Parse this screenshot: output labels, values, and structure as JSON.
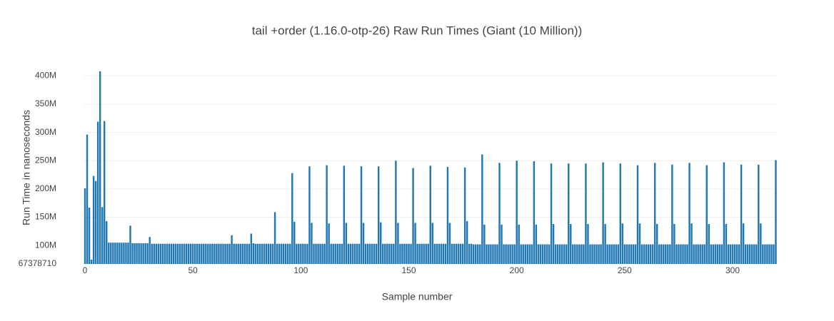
{
  "chart_data": {
    "type": "bar",
    "title": "tail +order (1.16.0-otp-26) Raw Run Times (Giant (10 Million))",
    "x_label": "Sample number",
    "y_label": "Run Time in nanoseconds",
    "color": "#1f77b4",
    "grid": true,
    "xlim": [
      -0.5,
      320.5
    ],
    "xticks": [
      0,
      50,
      100,
      150,
      200,
      250,
      300
    ],
    "ylim": [
      67378710,
      408000000.0
    ],
    "yticks": [
      {
        "value": 67378710,
        "label": "67378710"
      },
      {
        "value": 100000000,
        "label": "100M"
      },
      {
        "value": 150000000,
        "label": "150M"
      },
      {
        "value": 200000000,
        "label": "200M"
      },
      {
        "value": 250000000,
        "label": "250M"
      },
      {
        "value": 300000000,
        "label": "300M"
      },
      {
        "value": 350000000,
        "label": "350M"
      },
      {
        "value": 400000000,
        "label": "400M"
      }
    ],
    "x": [
      0,
      1,
      2,
      3,
      4,
      5,
      6,
      7,
      8,
      9,
      10,
      11,
      12,
      13,
      14,
      15,
      16,
      17,
      18,
      19,
      20,
      21,
      22,
      23,
      24,
      25,
      26,
      27,
      28,
      29,
      30,
      31,
      32,
      33,
      34,
      35,
      36,
      37,
      38,
      39,
      40,
      41,
      42,
      43,
      44,
      45,
      46,
      47,
      48,
      49,
      50,
      51,
      52,
      53,
      54,
      55,
      56,
      57,
      58,
      59,
      60,
      61,
      62,
      63,
      64,
      65,
      66,
      67,
      68,
      69,
      70,
      71,
      72,
      73,
      74,
      75,
      76,
      77,
      78,
      79,
      80,
      81,
      82,
      83,
      84,
      85,
      86,
      87,
      88,
      89,
      90,
      91,
      92,
      93,
      94,
      95,
      96,
      97,
      98,
      99,
      100,
      101,
      102,
      103,
      104,
      105,
      106,
      107,
      108,
      109,
      110,
      111,
      112,
      113,
      114,
      115,
      116,
      117,
      118,
      119,
      120,
      121,
      122,
      123,
      124,
      125,
      126,
      127,
      128,
      129,
      130,
      131,
      132,
      133,
      134,
      135,
      136,
      137,
      138,
      139,
      140,
      141,
      142,
      143,
      144,
      145,
      146,
      147,
      148,
      149,
      150,
      151,
      152,
      153,
      154,
      155,
      156,
      157,
      158,
      159,
      160,
      161,
      162,
      163,
      164,
      165,
      166,
      167,
      168,
      169,
      170,
      171,
      172,
      173,
      174,
      175,
      176,
      177,
      178,
      179,
      180,
      181,
      182,
      183,
      184,
      185,
      186,
      187,
      188,
      189,
      190,
      191,
      192,
      193,
      194,
      195,
      196,
      197,
      198,
      199,
      200,
      201,
      202,
      203,
      204,
      205,
      206,
      207,
      208,
      209,
      210,
      211,
      212,
      213,
      214,
      215,
      216,
      217,
      218,
      219,
      220,
      221,
      222,
      223,
      224,
      225,
      226,
      227,
      228,
      229,
      230,
      231,
      232,
      233,
      234,
      235,
      236,
      237,
      238,
      239,
      240,
      241,
      242,
      243,
      244,
      245,
      246,
      247,
      248,
      249,
      250,
      251,
      252,
      253,
      254,
      255,
      256,
      257,
      258,
      259,
      260,
      261,
      262,
      263,
      264,
      265,
      266,
      267,
      268,
      269,
      270,
      271,
      272,
      273,
      274,
      275,
      276,
      277,
      278,
      279,
      280,
      281,
      282,
      283,
      284,
      285,
      286,
      287,
      288,
      289,
      290,
      291,
      292,
      293,
      294,
      295,
      296,
      297,
      298,
      299,
      300,
      301,
      302,
      303,
      304,
      305,
      306,
      307,
      308,
      309,
      310,
      311,
      312,
      313,
      314,
      315,
      316,
      317,
      318,
      319,
      320
    ],
    "values": [
      201000000.0,
      296000000.0,
      167000000.0,
      75000000.0,
      223000000.0,
      214000000.0,
      319000000.0,
      408000000.0,
      168000000.0,
      320000000.0,
      143000000.0,
      105000000.0,
      105000000.0,
      105000000.0,
      105000000.0,
      105000000.0,
      105000000.0,
      105000000.0,
      105000000.0,
      105000000.0,
      105000000.0,
      135000000.0,
      104000000.0,
      104000000.0,
      104000000.0,
      104000000.0,
      104000000.0,
      104000000.0,
      104000000.0,
      104000000.0,
      115000000.0,
      103000000.0,
      103000000.0,
      103000000.0,
      103000000.0,
      103000000.0,
      103000000.0,
      103000000.0,
      103000000.0,
      103000000.0,
      103000000.0,
      103000000.0,
      103000000.0,
      103000000.0,
      103000000.0,
      103000000.0,
      103000000.0,
      103000000.0,
      103000000.0,
      103000000.0,
      103000000.0,
      103000000.0,
      103000000.0,
      103000000.0,
      103000000.0,
      103000000.0,
      103000000.0,
      103000000.0,
      103000000.0,
      103000000.0,
      103000000.0,
      103000000.0,
      103000000.0,
      103000000.0,
      103000000.0,
      103000000.0,
      103000000.0,
      103000000.0,
      118000000.0,
      103000000.0,
      103000000.0,
      103000000.0,
      103000000.0,
      103000000.0,
      103000000.0,
      103000000.0,
      103000000.0,
      121000000.0,
      104000000.0,
      103000000.0,
      103000000.0,
      103000000.0,
      103000000.0,
      103000000.0,
      103000000.0,
      103000000.0,
      103000000.0,
      103000000.0,
      159000000.0,
      103000000.0,
      103000000.0,
      103000000.0,
      103000000.0,
      103000000.0,
      103000000.0,
      103000000.0,
      228000000.0,
      142000000.0,
      103000000.0,
      103000000.0,
      103000000.0,
      103000000.0,
      103000000.0,
      103000000.0,
      240000000.0,
      140000000.0,
      103000000.0,
      103000000.0,
      103000000.0,
      103000000.0,
      103000000.0,
      103000000.0,
      242000000.0,
      139000000.0,
      103000000.0,
      103000000.0,
      103000000.0,
      103000000.0,
      103000000.0,
      103000000.0,
      241000000.0,
      140000000.0,
      103000000.0,
      103000000.0,
      103000000.0,
      103000000.0,
      103000000.0,
      103000000.0,
      240000000.0,
      140000000.0,
      103000000.0,
      103000000.0,
      103000000.0,
      103000000.0,
      103000000.0,
      103000000.0,
      240000000.0,
      141000000.0,
      103000000.0,
      103000000.0,
      103000000.0,
      103000000.0,
      103000000.0,
      103000000.0,
      250000000.0,
      140000000.0,
      103000000.0,
      103000000.0,
      103000000.0,
      103000000.0,
      103000000.0,
      103000000.0,
      237000000.0,
      140000000.0,
      103000000.0,
      103000000.0,
      103000000.0,
      103000000.0,
      103000000.0,
      103000000.0,
      241000000.0,
      140000000.0,
      103000000.0,
      103000000.0,
      103000000.0,
      103000000.0,
      103000000.0,
      103000000.0,
      239000000.0,
      140000000.0,
      103000000.0,
      103000000.0,
      103000000.0,
      103000000.0,
      103000000.0,
      103000000.0,
      238000000.0,
      143000000.0,
      103000000.0,
      103000000.0,
      102000000.0,
      102000000.0,
      102000000.0,
      102000000.0,
      261000000.0,
      137000000.0,
      102000000.0,
      102000000.0,
      102000000.0,
      102000000.0,
      102000000.0,
      102000000.0,
      246000000.0,
      137000000.0,
      102000000.0,
      102000000.0,
      102000000.0,
      102000000.0,
      102000000.0,
      102000000.0,
      250000000.0,
      137000000.0,
      102000000.0,
      102000000.0,
      102000000.0,
      102000000.0,
      102000000.0,
      102000000.0,
      249000000.0,
      137000000.0,
      102000000.0,
      102000000.0,
      102000000.0,
      102000000.0,
      102000000.0,
      102000000.0,
      245000000.0,
      138000000.0,
      102000000.0,
      102000000.0,
      102000000.0,
      102000000.0,
      102000000.0,
      102000000.0,
      245000000.0,
      138000000.0,
      102000000.0,
      102000000.0,
      102000000.0,
      102000000.0,
      102000000.0,
      102000000.0,
      245000000.0,
      138000000.0,
      102000000.0,
      102000000.0,
      102000000.0,
      102000000.0,
      102000000.0,
      102000000.0,
      247000000.0,
      138000000.0,
      102000000.0,
      102000000.0,
      102000000.0,
      102000000.0,
      102000000.0,
      102000000.0,
      245000000.0,
      139000000.0,
      102000000.0,
      102000000.0,
      102000000.0,
      102000000.0,
      102000000.0,
      102000000.0,
      242000000.0,
      139000000.0,
      102000000.0,
      102000000.0,
      102000000.0,
      102000000.0,
      102000000.0,
      102000000.0,
      246000000.0,
      138000000.0,
      102000000.0,
      102000000.0,
      102000000.0,
      102000000.0,
      102000000.0,
      102000000.0,
      243000000.0,
      138000000.0,
      102000000.0,
      102000000.0,
      102000000.0,
      102000000.0,
      102000000.0,
      102000000.0,
      246000000.0,
      139000000.0,
      102000000.0,
      102000000.0,
      102000000.0,
      102000000.0,
      102000000.0,
      102000000.0,
      242000000.0,
      138000000.0,
      102000000.0,
      102000000.0,
      102000000.0,
      102000000.0,
      102000000.0,
      102000000.0,
      247000000.0,
      138000000.0,
      102000000.0,
      102000000.0,
      102000000.0,
      102000000.0,
      102000000.0,
      102000000.0,
      243000000.0,
      139000000.0,
      102000000.0,
      102000000.0,
      102000000.0,
      102000000.0,
      102000000.0,
      102000000.0,
      243000000.0,
      139000000.0,
      102000000.0,
      102000000.0,
      102000000.0,
      102000000.0,
      102000000.0,
      102000000.0,
      251000000.0
    ]
  }
}
